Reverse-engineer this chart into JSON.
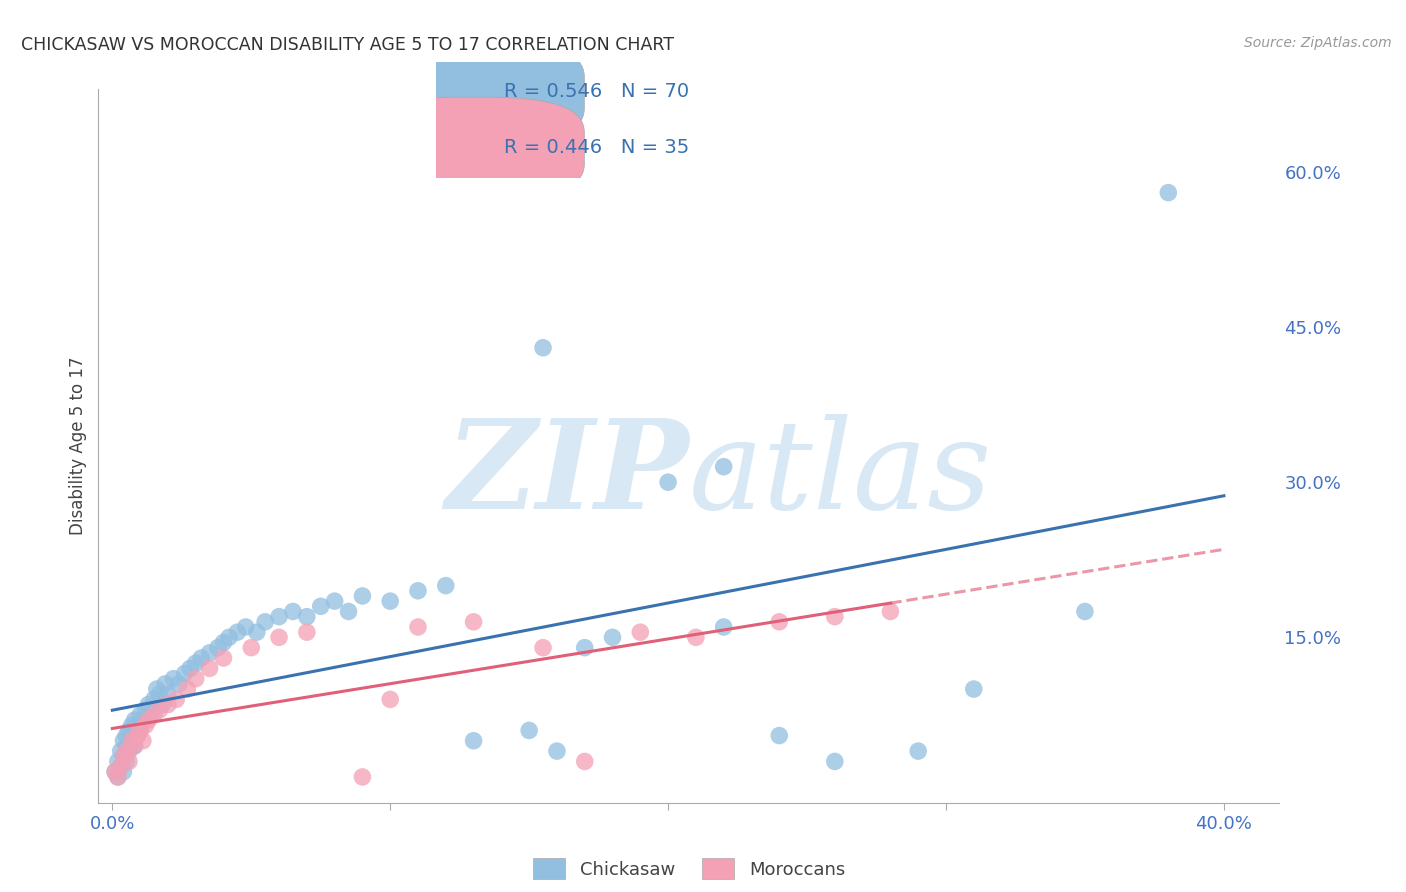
{
  "title": "CHICKASAW VS MOROCCAN DISABILITY AGE 5 TO 17 CORRELATION CHART",
  "source": "Source: ZipAtlas.com",
  "ylabel": "Disability Age 5 to 17",
  "chickasaw_R": 0.546,
  "chickasaw_N": 70,
  "moroccan_R": 0.446,
  "moroccan_N": 35,
  "chickasaw_color": "#92BEE0",
  "moroccan_color": "#F4A0B5",
  "chickasaw_line_color": "#3A72B0",
  "moroccan_line_color": "#E0607A",
  "legend_color": "#3A72B0",
  "watermark_color": "#D8E8F5",
  "background_color": "#FFFFFF",
  "grid_color": "#CCCCCC",
  "xlim": [
    0.0,
    0.4
  ],
  "ylim": [
    0.0,
    0.65
  ],
  "chickasaw_x": [
    0.001,
    0.002,
    0.002,
    0.003,
    0.003,
    0.004,
    0.004,
    0.004,
    0.005,
    0.005,
    0.005,
    0.006,
    0.006,
    0.007,
    0.007,
    0.008,
    0.008,
    0.009,
    0.009,
    0.01,
    0.01,
    0.011,
    0.012,
    0.013,
    0.014,
    0.015,
    0.016,
    0.017,
    0.018,
    0.019,
    0.02,
    0.022,
    0.024,
    0.026,
    0.028,
    0.03,
    0.032,
    0.035,
    0.038,
    0.04,
    0.042,
    0.045,
    0.048,
    0.052,
    0.055,
    0.06,
    0.065,
    0.07,
    0.075,
    0.08,
    0.085,
    0.09,
    0.1,
    0.11,
    0.12,
    0.13,
    0.15,
    0.16,
    0.17,
    0.18,
    0.2,
    0.22,
    0.24,
    0.26,
    0.29,
    0.31,
    0.35,
    0.38,
    0.22,
    0.155
  ],
  "chickasaw_y": [
    0.02,
    0.03,
    0.015,
    0.025,
    0.04,
    0.035,
    0.05,
    0.02,
    0.045,
    0.03,
    0.055,
    0.04,
    0.06,
    0.05,
    0.065,
    0.045,
    0.07,
    0.055,
    0.065,
    0.06,
    0.075,
    0.07,
    0.08,
    0.085,
    0.075,
    0.09,
    0.1,
    0.095,
    0.085,
    0.105,
    0.095,
    0.11,
    0.105,
    0.115,
    0.12,
    0.125,
    0.13,
    0.135,
    0.14,
    0.145,
    0.15,
    0.155,
    0.16,
    0.155,
    0.165,
    0.17,
    0.175,
    0.17,
    0.18,
    0.185,
    0.175,
    0.19,
    0.185,
    0.195,
    0.2,
    0.05,
    0.06,
    0.04,
    0.14,
    0.15,
    0.3,
    0.16,
    0.055,
    0.03,
    0.04,
    0.1,
    0.175,
    0.58,
    0.315,
    0.43
  ],
  "moroccan_x": [
    0.001,
    0.002,
    0.003,
    0.004,
    0.005,
    0.006,
    0.007,
    0.008,
    0.009,
    0.01,
    0.011,
    0.012,
    0.013,
    0.015,
    0.017,
    0.02,
    0.023,
    0.027,
    0.03,
    0.035,
    0.04,
    0.05,
    0.06,
    0.07,
    0.09,
    0.1,
    0.11,
    0.13,
    0.155,
    0.17,
    0.19,
    0.21,
    0.24,
    0.26,
    0.28
  ],
  "moroccan_y": [
    0.02,
    0.015,
    0.025,
    0.035,
    0.04,
    0.03,
    0.05,
    0.045,
    0.055,
    0.06,
    0.05,
    0.065,
    0.07,
    0.075,
    0.08,
    0.085,
    0.09,
    0.1,
    0.11,
    0.12,
    0.13,
    0.14,
    0.15,
    0.155,
    0.015,
    0.09,
    0.16,
    0.165,
    0.14,
    0.03,
    0.155,
    0.15,
    0.165,
    0.17,
    0.175
  ]
}
